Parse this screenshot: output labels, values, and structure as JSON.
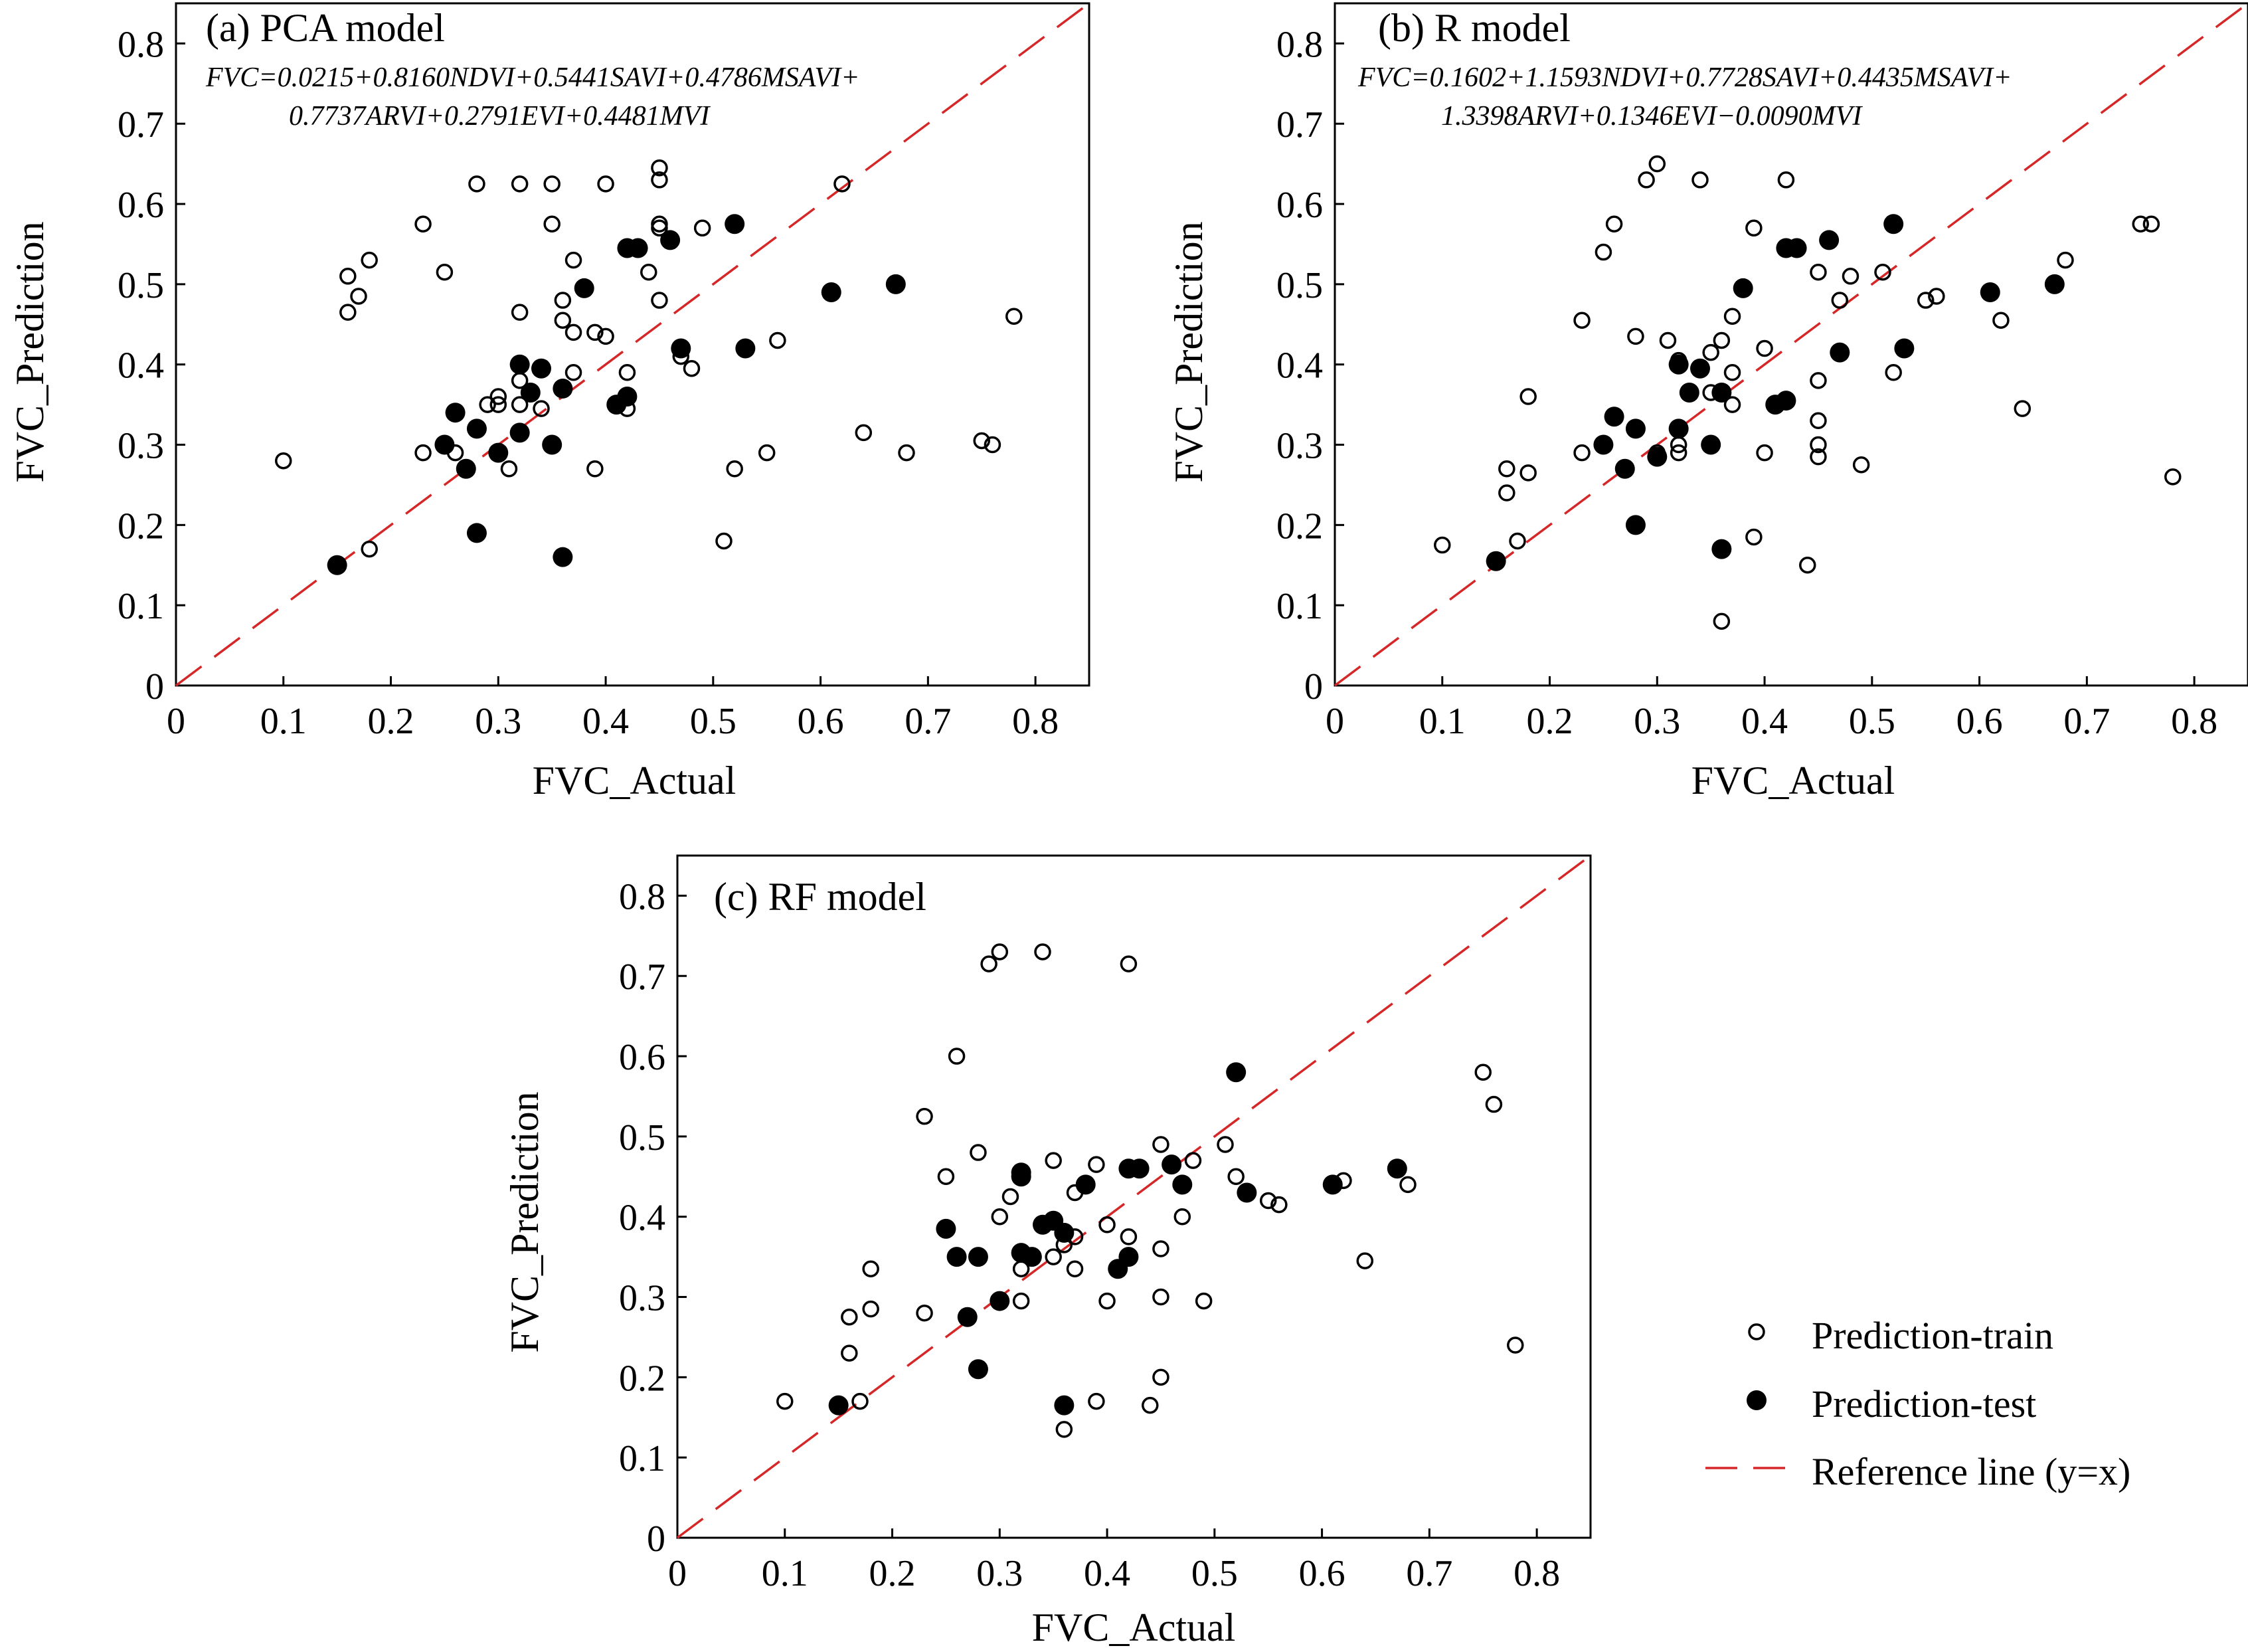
{
  "colors": {
    "train_marker": "#000000",
    "test_marker": "#000000",
    "reference_line": "#d62728",
    "axes": "#000000"
  },
  "legend": {
    "placement": "lower-right",
    "items": [
      {
        "label": "Prediction-train",
        "marker": "open-circle"
      },
      {
        "label": "Prediction-test",
        "marker": "filled-circle"
      },
      {
        "label": "Reference line (y=x)",
        "marker": "dashed-line"
      }
    ]
  },
  "chart_data": [
    {
      "type": "scatter",
      "title": "(a) PCA model",
      "equation": [
        "FVC=0.0215+0.8160NDVI+0.5441SAVI+0.4786MSAVI+",
        "0.7737ARVI+0.2791EVI+0.4481MVI"
      ],
      "xlabel": "FVC_Actual",
      "ylabel": "FVC_Prediction",
      "xlim": [
        0,
        0.85
      ],
      "ylim": [
        0,
        0.85
      ],
      "xticks": [
        "0",
        "0.1",
        "0.2",
        "0.3",
        "0.4",
        "0.5",
        "0.6",
        "0.7",
        "0.8"
      ],
      "yticks": [
        "0",
        "0.1",
        "0.2",
        "0.3",
        "0.4",
        "0.5",
        "0.6",
        "0.7",
        "0.8"
      ],
      "reference_line": "y=x",
      "series": [
        {
          "name": "Prediction-train",
          "points": [
            [
              0.1,
              0.28
            ],
            [
              0.16,
              0.51
            ],
            [
              0.16,
              0.465
            ],
            [
              0.17,
              0.485
            ],
            [
              0.18,
              0.53
            ],
            [
              0.18,
              0.17
            ],
            [
              0.23,
              0.575
            ],
            [
              0.23,
              0.29
            ],
            [
              0.25,
              0.515
            ],
            [
              0.26,
              0.29
            ],
            [
              0.28,
              0.625
            ],
            [
              0.29,
              0.35
            ],
            [
              0.3,
              0.36
            ],
            [
              0.3,
              0.35
            ],
            [
              0.31,
              0.27
            ],
            [
              0.32,
              0.625
            ],
            [
              0.32,
              0.465
            ],
            [
              0.32,
              0.38
            ],
            [
              0.32,
              0.35
            ],
            [
              0.34,
              0.345
            ],
            [
              0.35,
              0.625
            ],
            [
              0.35,
              0.575
            ],
            [
              0.36,
              0.48
            ],
            [
              0.36,
              0.455
            ],
            [
              0.37,
              0.53
            ],
            [
              0.37,
              0.44
            ],
            [
              0.37,
              0.39
            ],
            [
              0.39,
              0.44
            ],
            [
              0.39,
              0.27
            ],
            [
              0.4,
              0.625
            ],
            [
              0.4,
              0.435
            ],
            [
              0.42,
              0.39
            ],
            [
              0.42,
              0.345
            ],
            [
              0.44,
              0.515
            ],
            [
              0.45,
              0.645
            ],
            [
              0.45,
              0.63
            ],
            [
              0.45,
              0.575
            ],
            [
              0.45,
              0.57
            ],
            [
              0.45,
              0.48
            ],
            [
              0.47,
              0.41
            ],
            [
              0.48,
              0.395
            ],
            [
              0.49,
              0.57
            ],
            [
              0.51,
              0.18
            ],
            [
              0.52,
              0.27
            ],
            [
              0.55,
              0.29
            ],
            [
              0.56,
              0.43
            ],
            [
              0.62,
              0.625
            ],
            [
              0.64,
              0.315
            ],
            [
              0.68,
              0.29
            ],
            [
              0.75,
              0.305
            ],
            [
              0.76,
              0.3
            ],
            [
              0.78,
              0.46
            ]
          ]
        },
        {
          "name": "Prediction-test",
          "points": [
            [
              0.15,
              0.15
            ],
            [
              0.25,
              0.3
            ],
            [
              0.26,
              0.34
            ],
            [
              0.27,
              0.27
            ],
            [
              0.28,
              0.32
            ],
            [
              0.28,
              0.19
            ],
            [
              0.3,
              0.29
            ],
            [
              0.32,
              0.4
            ],
            [
              0.32,
              0.315
            ],
            [
              0.33,
              0.365
            ],
            [
              0.34,
              0.395
            ],
            [
              0.35,
              0.3
            ],
            [
              0.36,
              0.37
            ],
            [
              0.36,
              0.16
            ],
            [
              0.38,
              0.495
            ],
            [
              0.41,
              0.35
            ],
            [
              0.42,
              0.545
            ],
            [
              0.42,
              0.36
            ],
            [
              0.43,
              0.545
            ],
            [
              0.46,
              0.555
            ],
            [
              0.47,
              0.42
            ],
            [
              0.52,
              0.575
            ],
            [
              0.53,
              0.42
            ],
            [
              0.61,
              0.49
            ],
            [
              0.67,
              0.5
            ]
          ]
        }
      ]
    },
    {
      "type": "scatter",
      "title": "(b) R model",
      "equation": [
        "FVC=0.1602+1.1593NDVI+0.7728SAVI+0.4435MSAVI+",
        "1.3398ARVI+0.1346EVI−0.0090MVI"
      ],
      "xlabel": "FVC_Actual",
      "ylabel": "FVC_Prediction",
      "xlim": [
        0,
        0.85
      ],
      "ylim": [
        0,
        0.85
      ],
      "xticks": [
        "0",
        "0.1",
        "0.2",
        "0.3",
        "0.4",
        "0.5",
        "0.6",
        "0.7",
        "0.8"
      ],
      "yticks": [
        "0",
        "0.1",
        "0.2",
        "0.3",
        "0.4",
        "0.5",
        "0.6",
        "0.7",
        "0.8"
      ],
      "reference_line": "y=x",
      "series": [
        {
          "name": "Prediction-train",
          "points": [
            [
              0.1,
              0.175
            ],
            [
              0.16,
              0.27
            ],
            [
              0.16,
              0.24
            ],
            [
              0.17,
              0.18
            ],
            [
              0.18,
              0.36
            ],
            [
              0.18,
              0.265
            ],
            [
              0.23,
              0.455
            ],
            [
              0.23,
              0.29
            ],
            [
              0.25,
              0.54
            ],
            [
              0.26,
              0.575
            ],
            [
              0.28,
              0.435
            ],
            [
              0.29,
              0.63
            ],
            [
              0.3,
              0.65
            ],
            [
              0.3,
              0.29
            ],
            [
              0.31,
              0.43
            ],
            [
              0.32,
              0.405
            ],
            [
              0.32,
              0.3
            ],
            [
              0.32,
              0.29
            ],
            [
              0.34,
              0.63
            ],
            [
              0.35,
              0.415
            ],
            [
              0.35,
              0.365
            ],
            [
              0.36,
              0.43
            ],
            [
              0.37,
              0.46
            ],
            [
              0.37,
              0.39
            ],
            [
              0.37,
              0.35
            ],
            [
              0.36,
              0.08
            ],
            [
              0.39,
              0.57
            ],
            [
              0.39,
              0.185
            ],
            [
              0.4,
              0.42
            ],
            [
              0.4,
              0.29
            ],
            [
              0.42,
              0.63
            ],
            [
              0.42,
              0.355
            ],
            [
              0.44,
              0.15
            ],
            [
              0.45,
              0.515
            ],
            [
              0.45,
              0.38
            ],
            [
              0.45,
              0.33
            ],
            [
              0.45,
              0.3
            ],
            [
              0.45,
              0.285
            ],
            [
              0.47,
              0.48
            ],
            [
              0.48,
              0.51
            ],
            [
              0.49,
              0.275
            ],
            [
              0.51,
              0.515
            ],
            [
              0.52,
              0.39
            ],
            [
              0.55,
              0.48
            ],
            [
              0.56,
              0.485
            ],
            [
              0.62,
              0.455
            ],
            [
              0.64,
              0.345
            ],
            [
              0.68,
              0.53
            ],
            [
              0.75,
              0.575
            ],
            [
              0.76,
              0.575
            ],
            [
              0.78,
              0.26
            ]
          ]
        },
        {
          "name": "Prediction-test",
          "points": [
            [
              0.15,
              0.155
            ],
            [
              0.25,
              0.3
            ],
            [
              0.26,
              0.335
            ],
            [
              0.27,
              0.27
            ],
            [
              0.28,
              0.32
            ],
            [
              0.28,
              0.2
            ],
            [
              0.3,
              0.285
            ],
            [
              0.32,
              0.4
            ],
            [
              0.32,
              0.32
            ],
            [
              0.33,
              0.365
            ],
            [
              0.34,
              0.395
            ],
            [
              0.35,
              0.3
            ],
            [
              0.36,
              0.365
            ],
            [
              0.36,
              0.17
            ],
            [
              0.38,
              0.495
            ],
            [
              0.41,
              0.35
            ],
            [
              0.42,
              0.355
            ],
            [
              0.42,
              0.545
            ],
            [
              0.43,
              0.545
            ],
            [
              0.46,
              0.555
            ],
            [
              0.47,
              0.415
            ],
            [
              0.52,
              0.575
            ],
            [
              0.53,
              0.42
            ],
            [
              0.61,
              0.49
            ],
            [
              0.67,
              0.5
            ]
          ]
        }
      ]
    },
    {
      "type": "scatter",
      "title": "(c) RF model",
      "xlabel": "FVC_Actual",
      "ylabel": "FVC_Prediction",
      "xlim": [
        0,
        0.85
      ],
      "ylim": [
        0,
        0.85
      ],
      "xticks": [
        "0",
        "0.1",
        "0.2",
        "0.3",
        "0.4",
        "0.5",
        "0.6",
        "0.7",
        "0.8"
      ],
      "yticks": [
        "0",
        "0.1",
        "0.2",
        "0.3",
        "0.4",
        "0.5",
        "0.6",
        "0.7",
        "0.8"
      ],
      "reference_line": "y=x",
      "series": [
        {
          "name": "Prediction-train",
          "points": [
            [
              0.1,
              0.17
            ],
            [
              0.16,
              0.275
            ],
            [
              0.16,
              0.23
            ],
            [
              0.17,
              0.17
            ],
            [
              0.18,
              0.335
            ],
            [
              0.18,
              0.285
            ],
            [
              0.23,
              0.525
            ],
            [
              0.23,
              0.28
            ],
            [
              0.25,
              0.45
            ],
            [
              0.26,
              0.6
            ],
            [
              0.28,
              0.48
            ],
            [
              0.29,
              0.715
            ],
            [
              0.3,
              0.73
            ],
            [
              0.3,
              0.4
            ],
            [
              0.31,
              0.425
            ],
            [
              0.32,
              0.335
            ],
            [
              0.32,
              0.295
            ],
            [
              0.34,
              0.73
            ],
            [
              0.35,
              0.47
            ],
            [
              0.35,
              0.35
            ],
            [
              0.36,
              0.365
            ],
            [
              0.36,
              0.135
            ],
            [
              0.37,
              0.43
            ],
            [
              0.37,
              0.375
            ],
            [
              0.37,
              0.335
            ],
            [
              0.39,
              0.465
            ],
            [
              0.39,
              0.17
            ],
            [
              0.4,
              0.39
            ],
            [
              0.4,
              0.295
            ],
            [
              0.42,
              0.715
            ],
            [
              0.42,
              0.375
            ],
            [
              0.44,
              0.165
            ],
            [
              0.45,
              0.49
            ],
            [
              0.45,
              0.36
            ],
            [
              0.45,
              0.3
            ],
            [
              0.45,
              0.2
            ],
            [
              0.47,
              0.4
            ],
            [
              0.48,
              0.47
            ],
            [
              0.49,
              0.295
            ],
            [
              0.51,
              0.49
            ],
            [
              0.52,
              0.45
            ],
            [
              0.55,
              0.42
            ],
            [
              0.56,
              0.415
            ],
            [
              0.62,
              0.445
            ],
            [
              0.64,
              0.345
            ],
            [
              0.68,
              0.44
            ],
            [
              0.75,
              0.58
            ],
            [
              0.76,
              0.54
            ],
            [
              0.78,
              0.24
            ]
          ]
        },
        {
          "name": "Prediction-test",
          "points": [
            [
              0.15,
              0.165
            ],
            [
              0.25,
              0.385
            ],
            [
              0.26,
              0.35
            ],
            [
              0.27,
              0.275
            ],
            [
              0.28,
              0.35
            ],
            [
              0.28,
              0.21
            ],
            [
              0.3,
              0.295
            ],
            [
              0.32,
              0.455
            ],
            [
              0.32,
              0.45
            ],
            [
              0.32,
              0.355
            ],
            [
              0.33,
              0.35
            ],
            [
              0.34,
              0.39
            ],
            [
              0.35,
              0.395
            ],
            [
              0.36,
              0.38
            ],
            [
              0.36,
              0.165
            ],
            [
              0.38,
              0.44
            ],
            [
              0.41,
              0.335
            ],
            [
              0.42,
              0.46
            ],
            [
              0.42,
              0.35
            ],
            [
              0.43,
              0.46
            ],
            [
              0.46,
              0.465
            ],
            [
              0.47,
              0.44
            ],
            [
              0.52,
              0.58
            ],
            [
              0.53,
              0.43
            ],
            [
              0.61,
              0.44
            ],
            [
              0.67,
              0.46
            ]
          ]
        }
      ]
    }
  ]
}
